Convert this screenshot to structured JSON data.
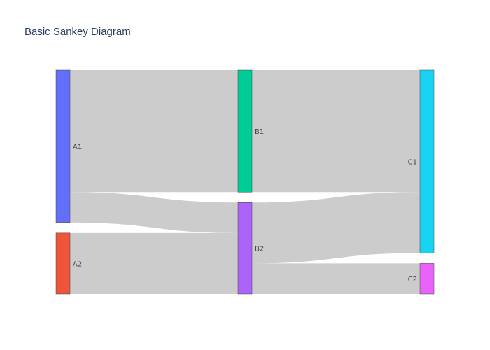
{
  "chart_data": {
    "type": "sankey",
    "title": "Basic Sankey Diagram",
    "nodes": [
      {
        "label": "A1",
        "color": "#636efa",
        "column": 0
      },
      {
        "label": "A2",
        "color": "#ef553b",
        "column": 0
      },
      {
        "label": "B1",
        "color": "#00cc96",
        "column": 1
      },
      {
        "label": "B2",
        "color": "#ab63fa",
        "column": 1
      },
      {
        "label": "C1",
        "color": "#19d3f3",
        "column": 2
      },
      {
        "label": "C2",
        "color": "#e763fa",
        "column": 2
      }
    ],
    "links": [
      {
        "source": "A1",
        "target": "B1",
        "value": 8
      },
      {
        "source": "A1",
        "target": "B2",
        "value": 2
      },
      {
        "source": "A2",
        "target": "B2",
        "value": 4
      },
      {
        "source": "B1",
        "target": "C1",
        "value": 8
      },
      {
        "source": "B2",
        "target": "C1",
        "value": 4
      },
      {
        "source": "B2",
        "target": "C2",
        "value": 2
      }
    ],
    "link_color": "#cccccc"
  }
}
